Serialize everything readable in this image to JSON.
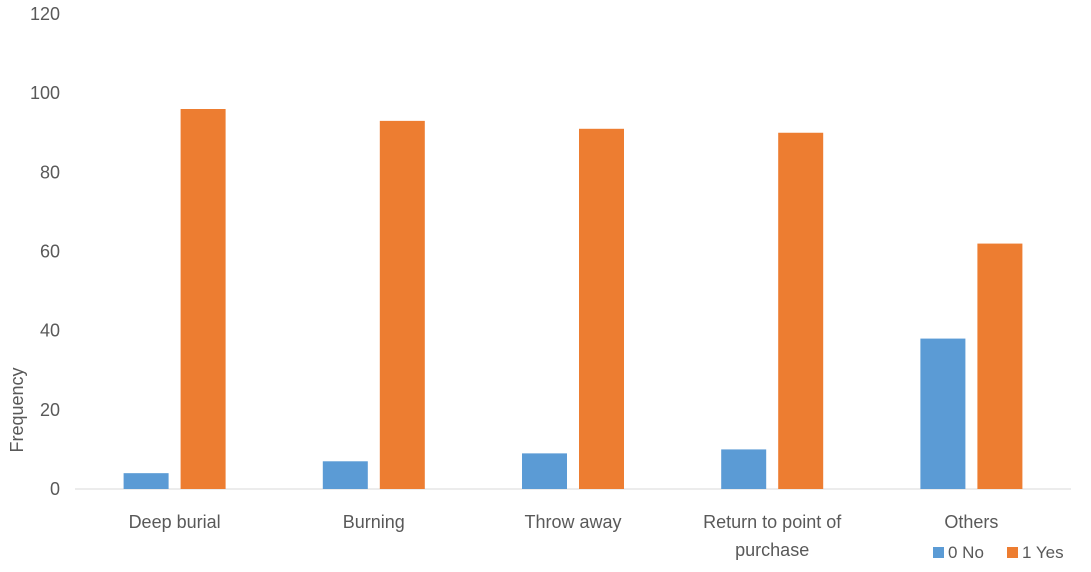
{
  "chart_data": {
    "type": "bar",
    "title": "",
    "xlabel": "",
    "ylabel": "Frequency",
    "ylim": [
      0,
      120
    ],
    "yticks": [
      0,
      20,
      40,
      60,
      80,
      100,
      120
    ],
    "grid": false,
    "legend_position": "bottom-right",
    "categories": [
      [
        "Deep burial"
      ],
      [
        "Burning"
      ],
      [
        "Throw away"
      ],
      [
        "Return to point of",
        "purchase"
      ],
      [
        "Others"
      ]
    ],
    "series": [
      {
        "name": "0 No",
        "color": "#5B9BD5",
        "values": [
          4,
          7,
          9,
          10,
          38
        ]
      },
      {
        "name": "1 Yes",
        "color": "#ED7D31",
        "values": [
          96,
          93,
          91,
          90,
          62
        ]
      }
    ]
  }
}
